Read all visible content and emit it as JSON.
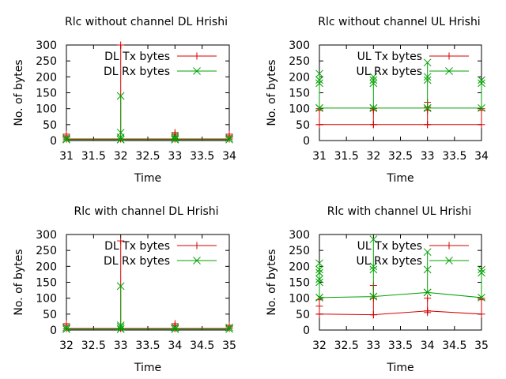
{
  "colors": {
    "tx": "#d40000",
    "rx": "#00a000",
    "axis": "#000000"
  },
  "chart_data": [
    {
      "type": "line",
      "title": "Rlc without channel DL Hrishi",
      "xlabel": "Time",
      "ylabel": "No. of bytes",
      "xlim": [
        31,
        34
      ],
      "ylim": [
        0,
        300
      ],
      "xticks": [
        31,
        31.5,
        32,
        32.5,
        33,
        33.5,
        34
      ],
      "yticks": [
        0,
        50,
        100,
        150,
        200,
        250,
        300
      ],
      "legend_position": "top-right",
      "series": [
        {
          "name": "DL Tx bytes",
          "marker": "plus",
          "points": [
            [
              31,
              5
            ],
            [
              31,
              10
            ],
            [
              31,
              15
            ],
            [
              31,
              20
            ],
            [
              31,
              5
            ],
            [
              32,
              5
            ],
            [
              32,
              300
            ],
            [
              32,
              5
            ],
            [
              33,
              5
            ],
            [
              33,
              15
            ],
            [
              33,
              20
            ],
            [
              33,
              25
            ],
            [
              33,
              5
            ],
            [
              34,
              5
            ],
            [
              34,
              10
            ],
            [
              34,
              15
            ],
            [
              34,
              20
            ]
          ]
        },
        {
          "name": "DL Rx bytes",
          "marker": "cross",
          "points": [
            [
              31,
              3
            ],
            [
              31,
              8
            ],
            [
              31,
              3
            ],
            [
              32,
              3
            ],
            [
              32,
              10
            ],
            [
              32,
              25
            ],
            [
              32,
              140
            ],
            [
              32,
              3
            ],
            [
              33,
              3
            ],
            [
              33,
              8
            ],
            [
              33,
              15
            ],
            [
              33,
              3
            ],
            [
              34,
              3
            ],
            [
              34,
              8
            ]
          ]
        }
      ]
    },
    {
      "type": "line",
      "title": "Rlc without channel UL Hrishi",
      "xlabel": "Time",
      "ylabel": "No. of bytes",
      "xlim": [
        31,
        34
      ],
      "ylim": [
        0,
        300
      ],
      "xticks": [
        31,
        31.5,
        32,
        32.5,
        33,
        33.5,
        34
      ],
      "yticks": [
        0,
        50,
        100,
        150,
        200,
        250,
        300
      ],
      "legend_position": "top-right",
      "series": [
        {
          "name": "UL Tx bytes",
          "marker": "plus",
          "points": [
            [
              31,
              50
            ],
            [
              31,
              95
            ],
            [
              31,
              100
            ],
            [
              31,
              50
            ],
            [
              32,
              50
            ],
            [
              32,
              95
            ],
            [
              32,
              100
            ],
            [
              32,
              50
            ],
            [
              33,
              50
            ],
            [
              33,
              95
            ],
            [
              33,
              105
            ],
            [
              33,
              120
            ],
            [
              33,
              50
            ],
            [
              34,
              50
            ],
            [
              34,
              95
            ],
            [
              34,
              100
            ]
          ]
        },
        {
          "name": "UL Rx bytes",
          "marker": "cross",
          "points": [
            [
              31,
              102
            ],
            [
              31,
              180
            ],
            [
              31,
              190
            ],
            [
              31,
              210
            ],
            [
              31,
              102
            ],
            [
              32,
              102
            ],
            [
              32,
              180
            ],
            [
              32,
              190
            ],
            [
              32,
              200
            ],
            [
              32,
              102
            ],
            [
              33,
              102
            ],
            [
              33,
              190
            ],
            [
              33,
              200
            ],
            [
              33,
              245
            ],
            [
              33,
              102
            ],
            [
              34,
              102
            ],
            [
              34,
              180
            ],
            [
              34,
              190
            ]
          ]
        }
      ]
    },
    {
      "type": "line",
      "title": "Rlc with channel DL Hrishi",
      "xlabel": "Time",
      "ylabel": "No. of bytes",
      "xlim": [
        32,
        35
      ],
      "ylim": [
        0,
        300
      ],
      "xticks": [
        32,
        32.5,
        33,
        33.5,
        34,
        34.5,
        35
      ],
      "yticks": [
        0,
        50,
        100,
        150,
        200,
        250,
        300
      ],
      "legend_position": "top-right",
      "series": [
        {
          "name": "DL Tx bytes",
          "marker": "plus",
          "points": [
            [
              32,
              5
            ],
            [
              32,
              15
            ],
            [
              32,
              20
            ],
            [
              32,
              5
            ],
            [
              33,
              5
            ],
            [
              33,
              280
            ],
            [
              33,
              5
            ],
            [
              34,
              5
            ],
            [
              34,
              15
            ],
            [
              34,
              20
            ],
            [
              34,
              5
            ],
            [
              35,
              5
            ],
            [
              35,
              10
            ],
            [
              35,
              15
            ]
          ]
        },
        {
          "name": "DL Rx bytes",
          "marker": "cross",
          "points": [
            [
              32,
              3
            ],
            [
              32,
              8
            ],
            [
              32,
              3
            ],
            [
              33,
              3
            ],
            [
              33,
              10
            ],
            [
              33,
              15
            ],
            [
              33,
              138
            ],
            [
              33,
              3
            ],
            [
              34,
              3
            ],
            [
              34,
              8
            ],
            [
              34,
              3
            ],
            [
              35,
              3
            ],
            [
              35,
              8
            ]
          ]
        }
      ]
    },
    {
      "type": "line",
      "title": "Rlc with channel UL Hrishi",
      "xlabel": "Time",
      "ylabel": "No. of bytes",
      "xlim": [
        32,
        35
      ],
      "ylim": [
        0,
        300
      ],
      "xticks": [
        32,
        32.5,
        33,
        33.5,
        34,
        34.5,
        35
      ],
      "yticks": [
        0,
        50,
        100,
        150,
        200,
        250,
        300
      ],
      "legend_position": "top-right",
      "series": [
        {
          "name": "UL Tx bytes",
          "marker": "plus",
          "points": [
            [
              32,
              50
            ],
            [
              32,
              75
            ],
            [
              32,
              95
            ],
            [
              32,
              50
            ],
            [
              33,
              48
            ],
            [
              33,
              100
            ],
            [
              33,
              140
            ],
            [
              33,
              48
            ],
            [
              34,
              60
            ],
            [
              34,
              55
            ],
            [
              34,
              100
            ],
            [
              34,
              60
            ],
            [
              35,
              50
            ],
            [
              35,
              95
            ],
            [
              35,
              100
            ]
          ]
        },
        {
          "name": "UL Rx bytes",
          "marker": "cross",
          "points": [
            [
              32,
              102
            ],
            [
              32,
              150
            ],
            [
              32,
              160
            ],
            [
              32,
              180
            ],
            [
              32,
              190
            ],
            [
              32,
              210
            ],
            [
              32,
              102
            ],
            [
              33,
              105
            ],
            [
              33,
              190
            ],
            [
              33,
              200
            ],
            [
              33,
              285
            ],
            [
              33,
              105
            ],
            [
              34,
              118
            ],
            [
              34,
              190
            ],
            [
              34,
              245
            ],
            [
              34,
              118
            ],
            [
              35,
              102
            ],
            [
              35,
              180
            ],
            [
              35,
              190
            ]
          ]
        }
      ]
    }
  ]
}
